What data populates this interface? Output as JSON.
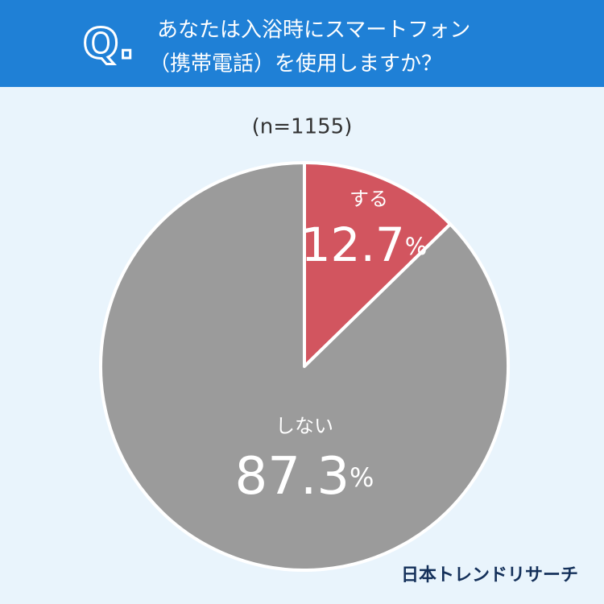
{
  "chart_data": {
    "type": "pie",
    "question_marker": "Q.",
    "title_lines": [
      "あなたは入浴時にスマートフォン",
      "（携帯電話）を使用しますか？"
    ],
    "subtitle": "(n=1155)",
    "categories": [
      "する",
      "しない"
    ],
    "values": [
      12.7,
      87.3
    ],
    "value_labels": [
      "12.7%",
      "87.3%"
    ],
    "colors": [
      "#d2555f",
      "#9b9b9b"
    ],
    "source": "日本トレンドリサーチ"
  }
}
